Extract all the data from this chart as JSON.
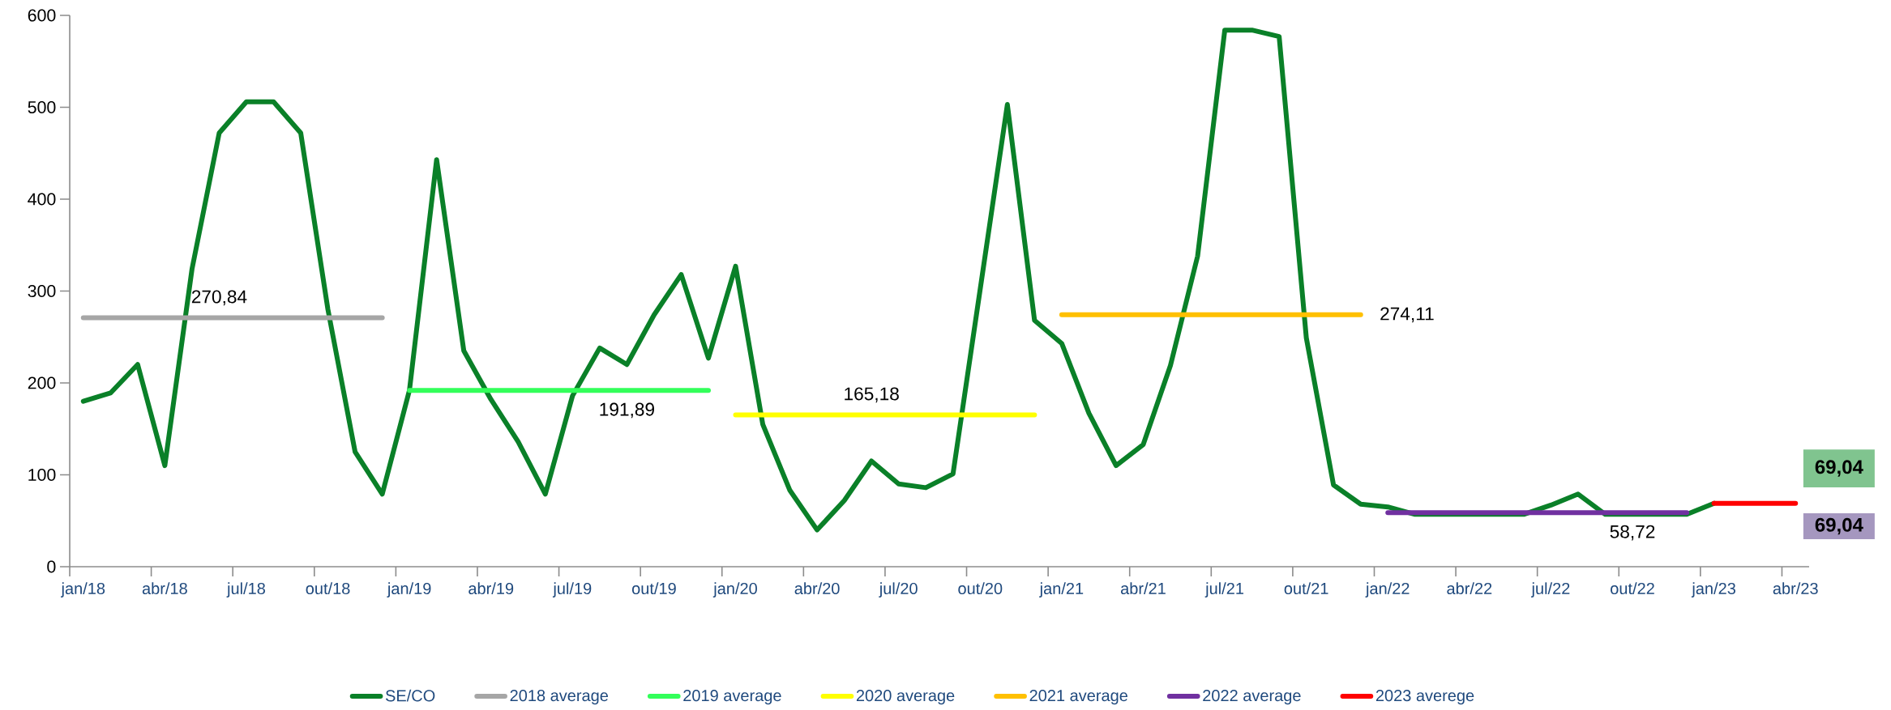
{
  "chart_data": {
    "type": "line",
    "categories": [
      "jan/18",
      null,
      null,
      "abr/18",
      null,
      null,
      "jul/18",
      null,
      null,
      "out/18",
      null,
      null,
      "jan/19",
      null,
      null,
      "abr/19",
      null,
      null,
      "jul/19",
      null,
      null,
      "out/19",
      null,
      null,
      "jan/20",
      null,
      null,
      "abr/20",
      null,
      null,
      "jul/20",
      null,
      null,
      "out/20",
      null,
      null,
      "jan/21",
      null,
      null,
      "abr/21",
      null,
      null,
      "jul/21",
      null,
      null,
      "out/21",
      null,
      null,
      "jan/22",
      null,
      null,
      "abr/22",
      null,
      null,
      "jul/22",
      null,
      null,
      "out/22",
      null,
      null,
      "jan/23",
      null,
      null,
      "abr/23"
    ],
    "series": [
      {
        "name": "SE/CO",
        "color": "#0a8028",
        "values": [
          180,
          189,
          220,
          110,
          324,
          472,
          506,
          506,
          472,
          280,
          125,
          79,
          192,
          443,
          235,
          182,
          136,
          79,
          186,
          238,
          220,
          274,
          318,
          227,
          327,
          155,
          83,
          40,
          72,
          115,
          90,
          86,
          101,
          302,
          503,
          268,
          243,
          167,
          110,
          133,
          219,
          338,
          584,
          584,
          577,
          249,
          89,
          68,
          65,
          57,
          57,
          57,
          57,
          57,
          67,
          79,
          57,
          57,
          57,
          57,
          69,
          null,
          null,
          null
        ]
      },
      {
        "name": "2018 average",
        "color": "#a6a6a6",
        "values": [
          270.84,
          270.84,
          270.84,
          270.84,
          270.84,
          270.84,
          270.84,
          270.84,
          270.84,
          270.84,
          270.84,
          270.84,
          null,
          null,
          null,
          null,
          null,
          null,
          null,
          null,
          null,
          null,
          null,
          null,
          null,
          null,
          null,
          null,
          null,
          null,
          null,
          null,
          null,
          null,
          null,
          null,
          null,
          null,
          null,
          null,
          null,
          null,
          null,
          null,
          null,
          null,
          null,
          null,
          null,
          null,
          null,
          null,
          null,
          null,
          null,
          null,
          null,
          null,
          null,
          null,
          null,
          null,
          null,
          null
        ],
        "value_labels": [
          null,
          null,
          null,
          null,
          null,
          "270,84",
          null,
          null,
          null,
          null,
          null,
          null,
          null,
          null,
          null,
          null,
          null,
          null,
          null,
          null,
          null,
          null,
          null,
          null,
          null,
          null,
          null,
          null,
          null,
          null,
          null,
          null,
          null,
          null,
          null,
          null,
          null,
          null,
          null,
          null,
          null,
          null,
          null,
          null,
          null,
          null,
          null,
          null,
          null,
          null,
          null,
          null,
          null,
          null,
          null,
          null,
          null,
          null,
          null,
          null,
          null,
          null,
          null,
          null
        ]
      },
      {
        "name": "2019 average",
        "color": "#33ff5a",
        "values": [
          null,
          null,
          null,
          null,
          null,
          null,
          null,
          null,
          null,
          null,
          null,
          null,
          191.89,
          191.89,
          191.89,
          191.89,
          191.89,
          191.89,
          191.89,
          191.89,
          191.89,
          191.89,
          191.89,
          191.89,
          null,
          null,
          null,
          null,
          null,
          null,
          null,
          null,
          null,
          null,
          null,
          null,
          null,
          null,
          null,
          null,
          null,
          null,
          null,
          null,
          null,
          null,
          null,
          null,
          null,
          null,
          null,
          null,
          null,
          null,
          null,
          null,
          null,
          null,
          null,
          null,
          null,
          null,
          null,
          null
        ],
        "value_labels": [
          null,
          null,
          null,
          null,
          null,
          null,
          null,
          null,
          null,
          null,
          null,
          null,
          null,
          null,
          null,
          null,
          null,
          null,
          null,
          null,
          "191,89",
          null,
          null,
          null,
          null,
          null,
          null,
          null,
          null,
          null,
          null,
          null,
          null,
          null,
          null,
          null,
          null,
          null,
          null,
          null,
          null,
          null,
          null,
          null,
          null,
          null,
          null,
          null,
          null,
          null,
          null,
          null,
          null,
          null,
          null,
          null,
          null,
          null,
          null,
          null,
          null,
          null,
          null,
          null
        ]
      },
      {
        "name": "2020 average",
        "color": "#ffff00",
        "values": [
          null,
          null,
          null,
          null,
          null,
          null,
          null,
          null,
          null,
          null,
          null,
          null,
          null,
          null,
          null,
          null,
          null,
          null,
          null,
          null,
          null,
          null,
          null,
          null,
          165.18,
          165.18,
          165.18,
          165.18,
          165.18,
          165.18,
          165.18,
          165.18,
          165.18,
          165.18,
          165.18,
          165.18,
          null,
          null,
          null,
          null,
          null,
          null,
          null,
          null,
          null,
          null,
          null,
          null,
          null,
          null,
          null,
          null,
          null,
          null,
          null,
          null,
          null,
          null,
          null,
          null,
          null,
          null,
          null,
          null
        ],
        "value_labels": [
          null,
          null,
          null,
          null,
          null,
          null,
          null,
          null,
          null,
          null,
          null,
          null,
          null,
          null,
          null,
          null,
          null,
          null,
          null,
          null,
          null,
          null,
          null,
          null,
          null,
          null,
          null,
          null,
          null,
          "165,18",
          null,
          null,
          null,
          null,
          null,
          null,
          null,
          null,
          null,
          null,
          null,
          null,
          null,
          null,
          null,
          null,
          null,
          null,
          null,
          null,
          null,
          null,
          null,
          null,
          null,
          null,
          null,
          null,
          null,
          null,
          null,
          null,
          null,
          null
        ]
      },
      {
        "name": "2021 average",
        "color": "#ffc000",
        "values": [
          null,
          null,
          null,
          null,
          null,
          null,
          null,
          null,
          null,
          null,
          null,
          null,
          null,
          null,
          null,
          null,
          null,
          null,
          null,
          null,
          null,
          null,
          null,
          null,
          null,
          null,
          null,
          null,
          null,
          null,
          null,
          null,
          null,
          null,
          null,
          null,
          274.11,
          274.11,
          274.11,
          274.11,
          274.11,
          274.11,
          274.11,
          274.11,
          274.11,
          274.11,
          274.11,
          274.11,
          null,
          null,
          null,
          null,
          null,
          null,
          null,
          null,
          null,
          null,
          null,
          null,
          null,
          null,
          null,
          null
        ],
        "value_labels": [
          null,
          null,
          null,
          null,
          null,
          null,
          null,
          null,
          null,
          null,
          null,
          null,
          null,
          null,
          null,
          null,
          null,
          null,
          null,
          null,
          null,
          null,
          null,
          null,
          null,
          null,
          null,
          null,
          null,
          null,
          null,
          null,
          null,
          null,
          null,
          null,
          null,
          null,
          null,
          null,
          null,
          null,
          null,
          null,
          null,
          null,
          null,
          "274,11",
          null,
          null,
          null,
          null,
          null,
          null,
          null,
          null,
          null,
          null,
          null,
          null,
          null,
          null,
          null,
          null
        ]
      },
      {
        "name": "2022 average",
        "color": "#7030a0",
        "values": [
          null,
          null,
          null,
          null,
          null,
          null,
          null,
          null,
          null,
          null,
          null,
          null,
          null,
          null,
          null,
          null,
          null,
          null,
          null,
          null,
          null,
          null,
          null,
          null,
          null,
          null,
          null,
          null,
          null,
          null,
          null,
          null,
          null,
          null,
          null,
          null,
          null,
          null,
          null,
          null,
          null,
          null,
          null,
          null,
          null,
          null,
          null,
          null,
          58.72,
          58.72,
          58.72,
          58.72,
          58.72,
          58.72,
          58.72,
          58.72,
          58.72,
          58.72,
          58.72,
          58.72,
          null,
          null,
          null,
          null
        ],
        "value_labels": [
          null,
          null,
          null,
          null,
          null,
          null,
          null,
          null,
          null,
          null,
          null,
          null,
          null,
          null,
          null,
          null,
          null,
          null,
          null,
          null,
          null,
          null,
          null,
          null,
          null,
          null,
          null,
          null,
          null,
          null,
          null,
          null,
          null,
          null,
          null,
          null,
          null,
          null,
          null,
          null,
          null,
          null,
          null,
          null,
          null,
          null,
          null,
          null,
          null,
          null,
          null,
          null,
          null,
          null,
          null,
          null,
          null,
          "58,72",
          null,
          null,
          null,
          null,
          null,
          null
        ]
      },
      {
        "name": "2023 averege",
        "color": "#ff0000",
        "values": [
          null,
          null,
          null,
          null,
          null,
          null,
          null,
          null,
          null,
          null,
          null,
          null,
          null,
          null,
          null,
          null,
          null,
          null,
          null,
          null,
          null,
          null,
          null,
          null,
          null,
          null,
          null,
          null,
          null,
          null,
          null,
          null,
          null,
          null,
          null,
          null,
          null,
          null,
          null,
          null,
          null,
          null,
          null,
          null,
          null,
          null,
          null,
          null,
          null,
          null,
          null,
          null,
          null,
          null,
          null,
          null,
          null,
          null,
          null,
          null,
          69.04,
          69.04,
          69.04,
          69.04
        ]
      }
    ],
    "annotations": [
      "69,04",
      "69,04"
    ],
    "ylim": [
      0,
      600
    ],
    "yticks": [
      0,
      100,
      200,
      300,
      400,
      500,
      600
    ],
    "grid": false,
    "legend": "bottom",
    "marker": "none",
    "line_style": "solid"
  }
}
